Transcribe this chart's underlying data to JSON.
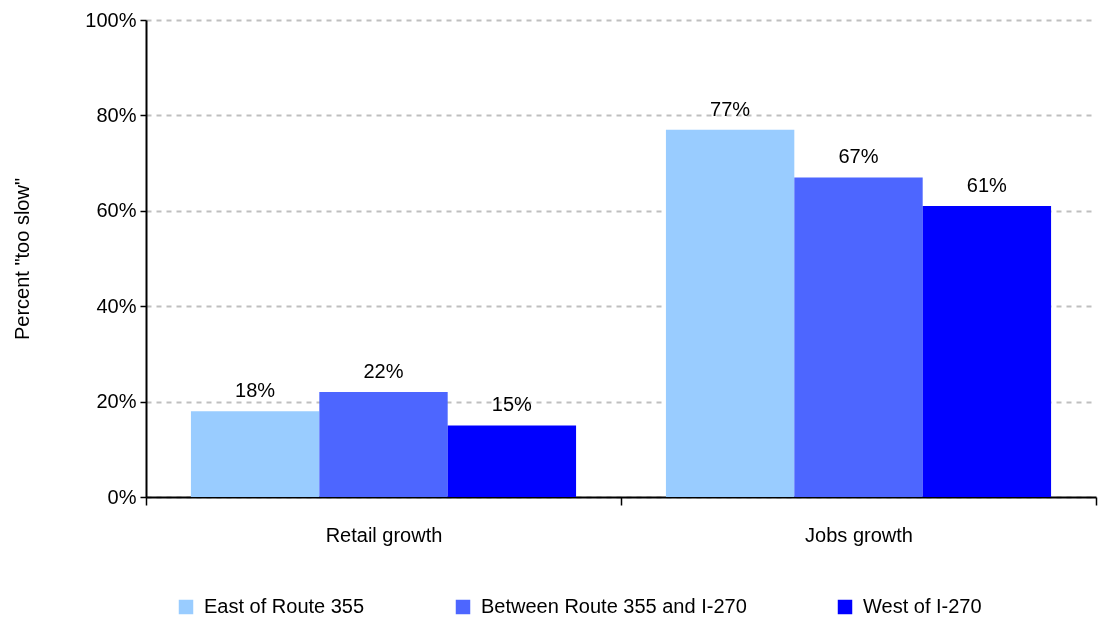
{
  "chart_data": {
    "type": "bar",
    "ylabel": "Percent \"too slow\"",
    "categories": [
      "Retail growth",
      "Jobs growth"
    ],
    "series": [
      {
        "name": "East of Route 355",
        "color": "#99ccff",
        "values": [
          18,
          77
        ],
        "value_labels": [
          "18%",
          "77%"
        ]
      },
      {
        "name": "Between Route 355 and I-270",
        "color": "#4d66ff",
        "values": [
          22,
          67
        ],
        "value_labels": [
          "22%",
          "67%"
        ]
      },
      {
        "name": "West of I-270",
        "color": "#0000ff",
        "values": [
          15,
          61
        ],
        "value_labels": [
          "15%",
          "61%"
        ]
      }
    ],
    "ylim": [
      0,
      100
    ],
    "yticks": [
      {
        "value": 0,
        "label": "0%"
      },
      {
        "value": 20,
        "label": "20%"
      },
      {
        "value": 40,
        "label": "40%"
      },
      {
        "value": 60,
        "label": "60%"
      },
      {
        "value": 80,
        "label": "80%"
      },
      {
        "value": 100,
        "label": "100%"
      }
    ],
    "grid": "y",
    "legend": "bottom"
  }
}
